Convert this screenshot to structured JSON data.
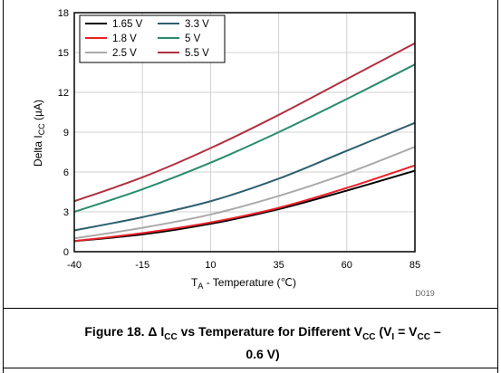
{
  "chart_data": {
    "type": "line",
    "ylabel": "Delta I",
    "ylabel_sub": "CC",
    "ylabel_unit": " (µA)",
    "xlabel_prefix": "T",
    "xlabel_sub": "A",
    "xlabel_rest": " - Temperature (℃)",
    "xlim": [
      -40,
      85
    ],
    "ylim": [
      0,
      18
    ],
    "x_ticks": [
      -40,
      -15,
      10,
      35,
      60,
      85
    ],
    "y_ticks": [
      0,
      3,
      6,
      9,
      12,
      15,
      18
    ],
    "grid": true,
    "legend_position": "top-left",
    "x": [
      -40,
      -15,
      10,
      35,
      60,
      85
    ],
    "series": [
      {
        "name": "1.65 V",
        "color": "#000000",
        "values": [
          0.8,
          1.3,
          2.1,
          3.2,
          4.6,
          6.1
        ]
      },
      {
        "name": "1.8 V",
        "color": "#e8202a",
        "values": [
          0.8,
          1.4,
          2.2,
          3.3,
          4.8,
          6.5
        ]
      },
      {
        "name": "2.5 V",
        "color": "#aaaaaa",
        "values": [
          1.0,
          1.8,
          2.8,
          4.2,
          5.9,
          7.9
        ]
      },
      {
        "name": "3.3 V",
        "color": "#2e5f6f",
        "values": [
          1.6,
          2.6,
          3.8,
          5.5,
          7.6,
          9.7
        ]
      },
      {
        "name": "5 V",
        "color": "#2a8a6e",
        "values": [
          3.0,
          4.7,
          6.7,
          9.0,
          11.5,
          14.1
        ]
      },
      {
        "name": "5.5 V",
        "color": "#b03040",
        "values": [
          3.8,
          5.6,
          7.8,
          10.3,
          13.0,
          15.7
        ]
      }
    ],
    "code": "D019"
  },
  "caption": {
    "part1": "Figure 18. Δ I",
    "sub1": "CC",
    "part2": " vs Temperature for Different V",
    "sub2": "CC",
    "part3": " (V",
    "sub3": "I",
    "part4": " = V",
    "sub4": "CC",
    "part5": " –",
    "line2": "0.6 V)"
  }
}
